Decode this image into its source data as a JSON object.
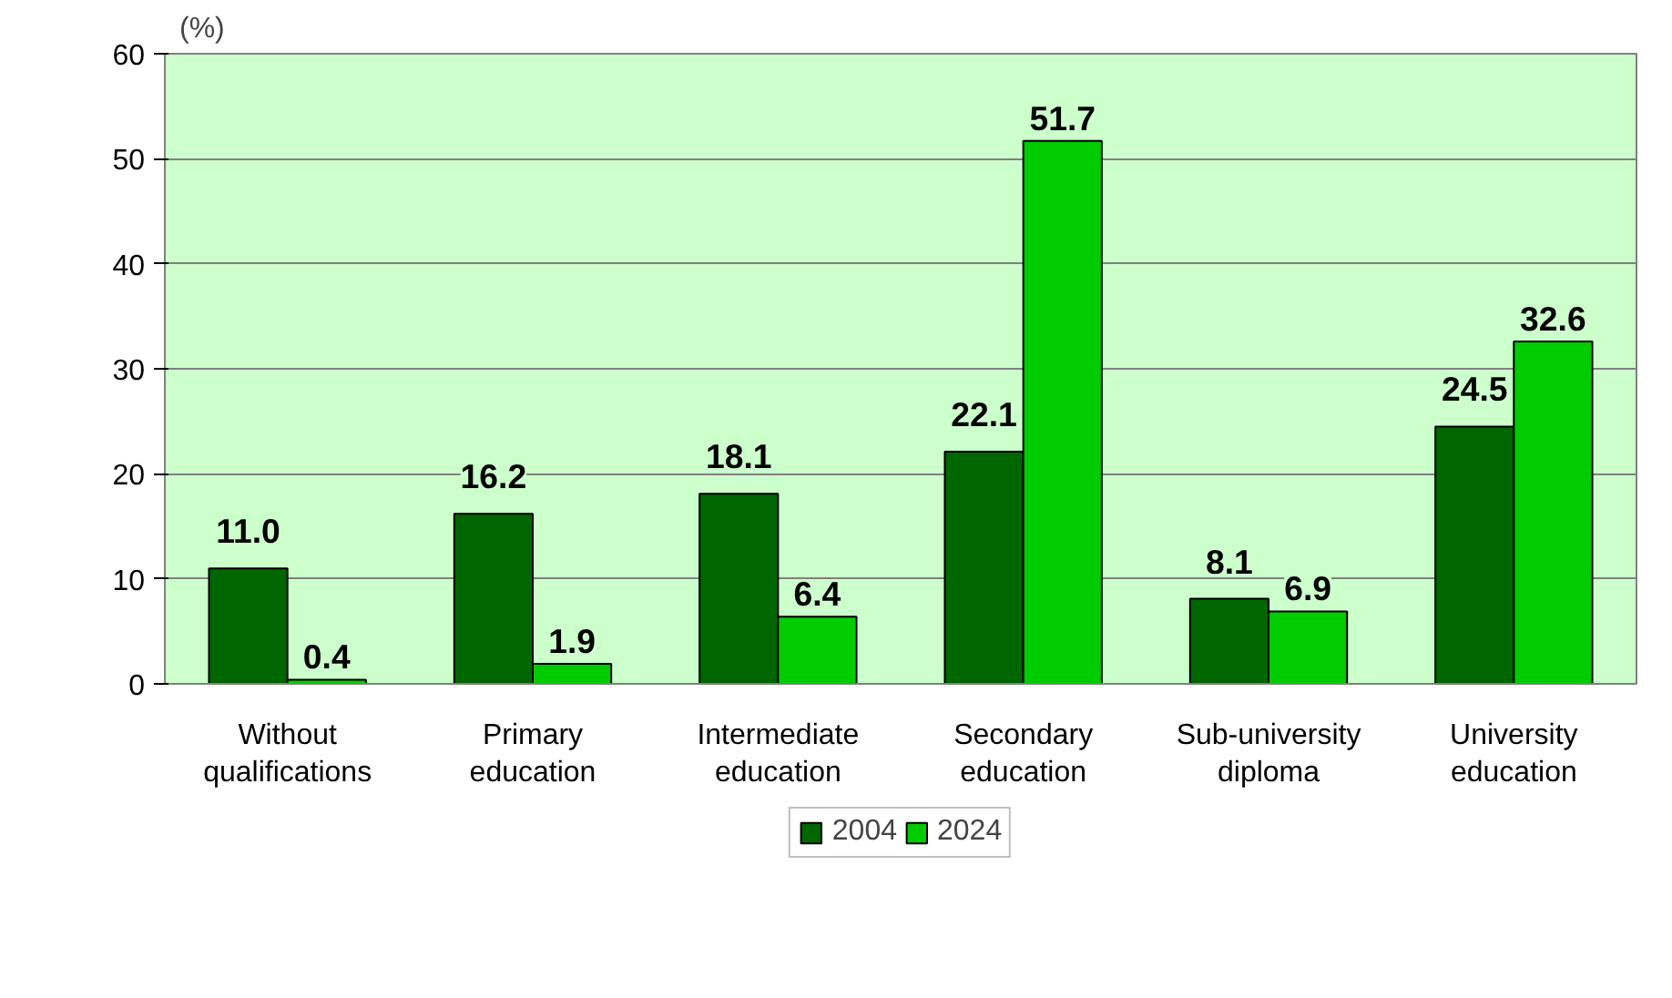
{
  "chart_data": {
    "type": "bar",
    "ylabel": "(%)",
    "categories": [
      "Without qualifications",
      "Primary education",
      "Intermediate education",
      "Secondary education",
      "Sub-university diploma",
      "University education"
    ],
    "series": [
      {
        "name": "2004",
        "color": "#006600",
        "values": [
          11.0,
          16.2,
          18.1,
          22.1,
          8.1,
          24.5
        ],
        "value_labels": [
          "11.0",
          "16.2",
          "18.1",
          "22.1",
          "8.1",
          "24.5"
        ]
      },
      {
        "name": "2024",
        "color": "#00cc00",
        "values": [
          0.4,
          1.9,
          6.4,
          51.7,
          6.9,
          32.6
        ],
        "value_labels": [
          "0.4",
          "1.9",
          "6.4",
          "51.7",
          "6.9",
          "32.6"
        ]
      }
    ],
    "ylim": [
      0,
      60
    ],
    "yticks": [
      0,
      10,
      20,
      30,
      40,
      50,
      60
    ],
    "grid": "y",
    "legend": "bottom"
  }
}
